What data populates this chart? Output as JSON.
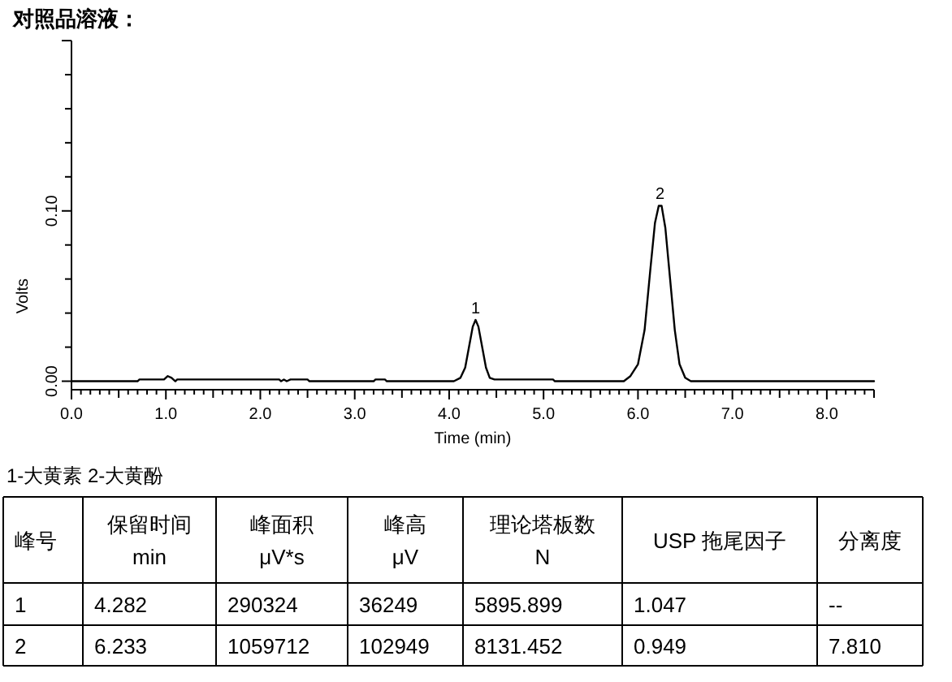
{
  "chart_data": {
    "type": "line",
    "title": "对照品溶液：",
    "xlabel": "Time (min)",
    "ylabel": "Volts",
    "x": [
      0,
      0.7,
      0.72,
      0.98,
      1.02,
      1.06,
      1.1,
      1.12,
      2.2,
      2.22,
      2.25,
      2.28,
      2.32,
      2.5,
      2.52,
      3.2,
      3.22,
      3.32,
      3.34,
      4.05,
      4.12,
      4.17,
      4.21,
      4.25,
      4.28,
      4.31,
      4.35,
      4.39,
      4.43,
      4.48,
      5.1,
      5.12,
      5.85,
      5.92,
      6.0,
      6.07,
      6.13,
      6.18,
      6.22,
      6.25,
      6.29,
      6.34,
      6.39,
      6.44,
      6.5,
      6.56,
      8.5
    ],
    "series": [
      {
        "color": "#000000",
        "values": [
          0,
          0,
          0.001,
          0.001,
          0.003,
          0.002,
          0,
          0.001,
          0.001,
          0,
          0.001,
          0,
          0.001,
          0.001,
          0,
          0,
          0.001,
          0.001,
          0,
          0,
          0.002,
          0.008,
          0.02,
          0.032,
          0.036,
          0.032,
          0.02,
          0.008,
          0.002,
          0.001,
          0.001,
          0,
          0,
          0.003,
          0.01,
          0.03,
          0.065,
          0.093,
          0.103,
          0.103,
          0.09,
          0.06,
          0.03,
          0.01,
          0.002,
          0,
          0
        ]
      }
    ],
    "xlim": [
      0,
      8.5
    ],
    "xticks": [
      {
        "value": 0,
        "label": "0.0"
      },
      {
        "value": 1,
        "label": "1.0"
      },
      {
        "value": 2,
        "label": "2.0"
      },
      {
        "value": 3,
        "label": "3.0"
      },
      {
        "value": 4,
        "label": "4.0"
      },
      {
        "value": 5,
        "label": "5.0"
      },
      {
        "value": 6,
        "label": "6.0"
      },
      {
        "value": 7,
        "label": "7.0"
      },
      {
        "value": 8,
        "label": "8.0"
      }
    ],
    "ylim": [
      -0.005,
      0.2
    ],
    "yticks": [
      {
        "value": 0,
        "label": "0.00"
      },
      {
        "value": 0.1,
        "label": "0.10"
      }
    ],
    "grid": false,
    "marker": "none",
    "line_style": "solid",
    "annotations": [
      {
        "text": "1",
        "x": 4.28,
        "y": 0.036
      },
      {
        "text": "2",
        "x": 6.233,
        "y": 0.103
      },
      "1-大黄素 2-大黄酚",
      "峰号",
      "保留时间\nmin",
      "峰面积\nμV*s",
      "峰高\nμV",
      "理论塔板数\nN",
      "USP 拖尾因子",
      "分离度",
      "1",
      "4.282",
      "290324",
      "36249",
      "5895.899",
      "1.047",
      "--",
      "2",
      "6.233",
      "1059712",
      "102949",
      "8131.452",
      "0.949",
      "7.810"
    ]
  }
}
